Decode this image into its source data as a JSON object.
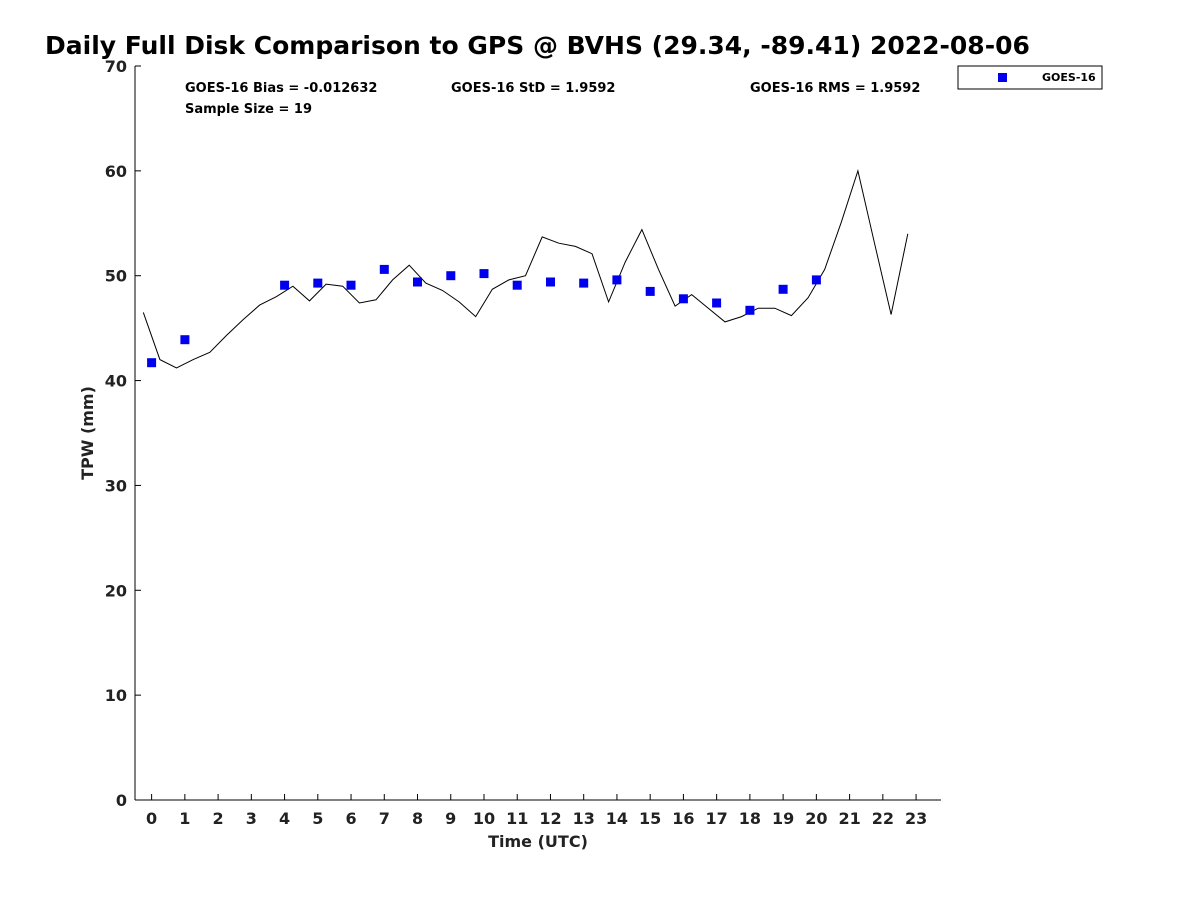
{
  "chart_data": {
    "type": "scatter",
    "title": "Daily Full Disk Comparison to GPS @ BVHS (29.34, -89.41) 2022-08-06",
    "xlabel": "Time (UTC)",
    "ylabel": "TPW (mm)",
    "xlim": [
      -0.5,
      23.75
    ],
    "ylim": [
      0,
      70
    ],
    "x_ticks": [
      "0",
      "1",
      "2",
      "3",
      "4",
      "5",
      "6",
      "7",
      "8",
      "9",
      "10",
      "11",
      "12",
      "13",
      "14",
      "15",
      "16",
      "17",
      "18",
      "19",
      "20",
      "21",
      "22",
      "23"
    ],
    "y_ticks": [
      "0",
      "10",
      "20",
      "30",
      "40",
      "50",
      "60",
      "70"
    ],
    "grid": false,
    "legend_position": "top-right",
    "stats": {
      "bias": "GOES-16 Bias = -0.012632",
      "std": "GOES-16 StD = 1.9592",
      "rms": "GOES-16 RMS = 1.9592",
      "sample": "Sample Size = 19"
    },
    "series": [
      {
        "name": "GOES-16",
        "kind": "marker",
        "marker": "square",
        "color": "#0000ee",
        "x": [
          0,
          1,
          4,
          5,
          6,
          7,
          8,
          9,
          10,
          11,
          12,
          13,
          14,
          15,
          16,
          17,
          18,
          19,
          20
        ],
        "y": [
          41.7,
          43.9,
          49.1,
          49.3,
          49.1,
          50.6,
          49.4,
          50.0,
          50.2,
          49.1,
          49.4,
          49.3,
          49.6,
          48.5,
          47.8,
          47.4,
          46.7,
          48.7,
          49.6
        ]
      },
      {
        "kind": "line",
        "color": "#000000",
        "x": [
          -0.25,
          0.25,
          0.75,
          1.25,
          1.75,
          2.25,
          2.75,
          3.25,
          3.75,
          4.25,
          4.75,
          5.25,
          5.75,
          6.25,
          6.75,
          7.25,
          7.75,
          8.25,
          8.75,
          9.25,
          9.75,
          10.25,
          10.75,
          11.25,
          11.75,
          12.25,
          12.75,
          13.25,
          13.75,
          14.25,
          14.75,
          15.25,
          15.75,
          16.25,
          16.75,
          17.25,
          17.75,
          18.25,
          18.75,
          19.25,
          19.75,
          20.25,
          20.75,
          21.25,
          21.75,
          22.25,
          22.75
        ],
        "y": [
          46.5,
          42.0,
          41.2,
          42.0,
          42.7,
          44.3,
          45.8,
          47.2,
          48.0,
          49.0,
          47.6,
          49.2,
          49.0,
          47.4,
          47.7,
          49.6,
          51.0,
          49.3,
          48.6,
          47.5,
          46.1,
          48.7,
          49.6,
          50.0,
          53.7,
          53.1,
          52.8,
          52.1,
          47.5,
          51.3,
          54.4,
          50.6,
          47.1,
          48.2,
          46.9,
          45.6,
          46.1,
          46.9,
          46.9,
          46.2,
          47.9,
          50.6,
          55.1,
          60.0,
          53.1,
          46.3,
          54.0
        ]
      }
    ]
  }
}
